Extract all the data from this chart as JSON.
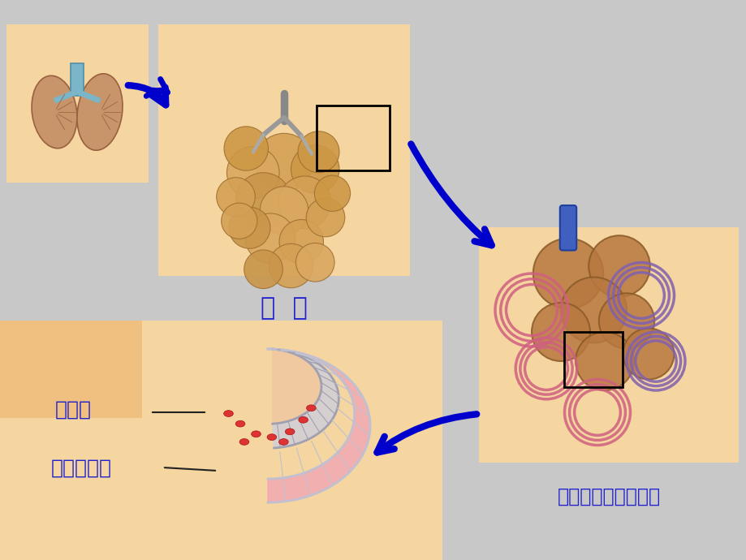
{
  "bg_color": "#c8c8c8",
  "panel_bg": "#f5d5a0",
  "panel_bg2": "#f0c890",
  "title_text1": "肺  泡",
  "title_text2": "肺泡及周围毛细血管",
  "label1": "肺泡壁",
  "label2": "毛细血管壁",
  "arrow_color": "#0000cc",
  "text_color": "#2222cc",
  "line_color": "#222222",
  "box_color": "#000000"
}
